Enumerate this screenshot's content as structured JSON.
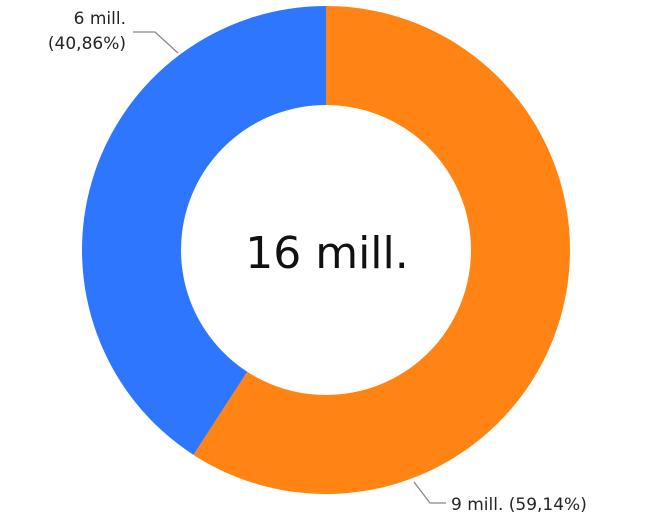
{
  "chart_data": {
    "type": "pie",
    "variant": "donut",
    "center_label": "16 mill.",
    "slices": [
      {
        "value": 9,
        "percent": 59.14,
        "label": "9 mill. (59,14%)",
        "color": "#FF8413"
      },
      {
        "value": 6,
        "percent": 40.86,
        "label_lines": [
          "6 mill.",
          "(40,86%)"
        ],
        "color": "#2F76FF"
      }
    ],
    "legend": "none"
  }
}
